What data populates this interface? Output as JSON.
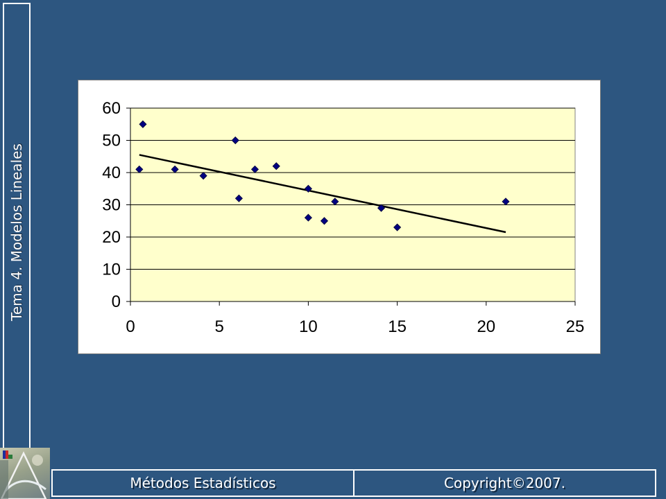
{
  "slide": {
    "side_title": "Tema 4. Modelos Lineales",
    "footer_left": "Métodos Estadísticos",
    "footer_right": "Copyright©2007."
  },
  "colors": {
    "background": "#2d5680",
    "plot_area": "#ffffcc",
    "marker": "#000080",
    "trendline": "#000000"
  },
  "chart_data": {
    "type": "scatter",
    "title": "",
    "xlabel": "",
    "ylabel": "",
    "xlim": [
      0,
      25
    ],
    "ylim": [
      0,
      60
    ],
    "xticks": [
      0,
      5,
      10,
      15,
      20,
      25
    ],
    "yticks": [
      0,
      10,
      20,
      30,
      40,
      50,
      60
    ],
    "grid": "horizontal",
    "legend": "none",
    "marker": "diamond",
    "points": [
      {
        "x": 0.5,
        "y": 41
      },
      {
        "x": 0.7,
        "y": 55
      },
      {
        "x": 2.5,
        "y": 41
      },
      {
        "x": 4.1,
        "y": 39
      },
      {
        "x": 5.9,
        "y": 50
      },
      {
        "x": 6.1,
        "y": 32
      },
      {
        "x": 7.0,
        "y": 41
      },
      {
        "x": 8.2,
        "y": 42
      },
      {
        "x": 10.0,
        "y": 26
      },
      {
        "x": 10.0,
        "y": 35
      },
      {
        "x": 10.9,
        "y": 25
      },
      {
        "x": 11.5,
        "y": 31
      },
      {
        "x": 14.1,
        "y": 29
      },
      {
        "x": 15.0,
        "y": 23
      },
      {
        "x": 21.1,
        "y": 31
      }
    ],
    "trendline": {
      "type": "linear",
      "x": [
        0.5,
        21.1
      ],
      "y": [
        45.5,
        21.5
      ]
    }
  }
}
